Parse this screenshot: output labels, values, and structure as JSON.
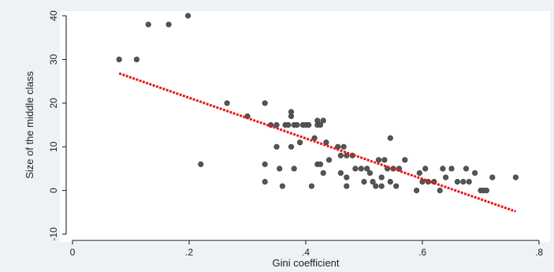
{
  "chart_data": {
    "type": "scatter",
    "title": "",
    "xlabel": "Gini coefficient",
    "ylabel": "Size of the middle class",
    "xlim": [
      0,
      0.8
    ],
    "ylim": [
      -10,
      40
    ],
    "x_ticks": [
      {
        "value": 0,
        "label": "0"
      },
      {
        "value": 0.2,
        "label": ".2"
      },
      {
        "value": 0.4,
        "label": ".4"
      },
      {
        "value": 0.6,
        "label": ".6"
      },
      {
        "value": 0.8,
        "label": ".8"
      }
    ],
    "y_ticks": [
      {
        "value": -10,
        "label": "-10"
      },
      {
        "value": 0,
        "label": "0"
      },
      {
        "value": 10,
        "label": "10"
      },
      {
        "value": 20,
        "label": "20"
      },
      {
        "value": 30,
        "label": "30"
      },
      {
        "value": 40,
        "label": "40"
      }
    ],
    "grid": false,
    "colors": {
      "points": "#555555",
      "fit_line": "#e8161b",
      "axes": "#111111"
    },
    "series": [
      {
        "type": "scatter",
        "points": [
          [
            0.08,
            30
          ],
          [
            0.11,
            30
          ],
          [
            0.13,
            38
          ],
          [
            0.165,
            38
          ],
          [
            0.198,
            40
          ],
          [
            0.22,
            6
          ],
          [
            0.265,
            20
          ],
          [
            0.3,
            17
          ],
          [
            0.33,
            20
          ],
          [
            0.33,
            6
          ],
          [
            0.33,
            2
          ],
          [
            0.34,
            15
          ],
          [
            0.35,
            10
          ],
          [
            0.35,
            15
          ],
          [
            0.355,
            5
          ],
          [
            0.36,
            1
          ],
          [
            0.365,
            15
          ],
          [
            0.37,
            15
          ],
          [
            0.375,
            18
          ],
          [
            0.375,
            17
          ],
          [
            0.375,
            10
          ],
          [
            0.38,
            5
          ],
          [
            0.38,
            15
          ],
          [
            0.385,
            15
          ],
          [
            0.39,
            11
          ],
          [
            0.395,
            15
          ],
          [
            0.4,
            15
          ],
          [
            0.405,
            15
          ],
          [
            0.41,
            1
          ],
          [
            0.415,
            12
          ],
          [
            0.42,
            16
          ],
          [
            0.42,
            15
          ],
          [
            0.42,
            6
          ],
          [
            0.425,
            15
          ],
          [
            0.425,
            6
          ],
          [
            0.43,
            16
          ],
          [
            0.43,
            4
          ],
          [
            0.435,
            11
          ],
          [
            0.44,
            7
          ],
          [
            0.455,
            10
          ],
          [
            0.46,
            4
          ],
          [
            0.46,
            8
          ],
          [
            0.465,
            10
          ],
          [
            0.47,
            8
          ],
          [
            0.47,
            3
          ],
          [
            0.47,
            1
          ],
          [
            0.48,
            8
          ],
          [
            0.485,
            5
          ],
          [
            0.495,
            5
          ],
          [
            0.5,
            2
          ],
          [
            0.505,
            5
          ],
          [
            0.51,
            4
          ],
          [
            0.515,
            2
          ],
          [
            0.52,
            1
          ],
          [
            0.525,
            7
          ],
          [
            0.53,
            3
          ],
          [
            0.53,
            1
          ],
          [
            0.535,
            7
          ],
          [
            0.54,
            5
          ],
          [
            0.545,
            12
          ],
          [
            0.545,
            2
          ],
          [
            0.55,
            5
          ],
          [
            0.555,
            1
          ],
          [
            0.56,
            5
          ],
          [
            0.57,
            7
          ],
          [
            0.59,
            0
          ],
          [
            0.595,
            4
          ],
          [
            0.6,
            2
          ],
          [
            0.605,
            5
          ],
          [
            0.61,
            2
          ],
          [
            0.62,
            2
          ],
          [
            0.63,
            0
          ],
          [
            0.635,
            5
          ],
          [
            0.64,
            3
          ],
          [
            0.65,
            5
          ],
          [
            0.66,
            2
          ],
          [
            0.67,
            2
          ],
          [
            0.675,
            5
          ],
          [
            0.68,
            2
          ],
          [
            0.69,
            4
          ],
          [
            0.7,
            0
          ],
          [
            0.705,
            0
          ],
          [
            0.71,
            0
          ],
          [
            0.72,
            3
          ],
          [
            0.76,
            3
          ]
        ]
      },
      {
        "type": "line",
        "points": [
          [
            0.08,
            26.8
          ],
          [
            0.76,
            -4.8
          ]
        ]
      }
    ]
  }
}
